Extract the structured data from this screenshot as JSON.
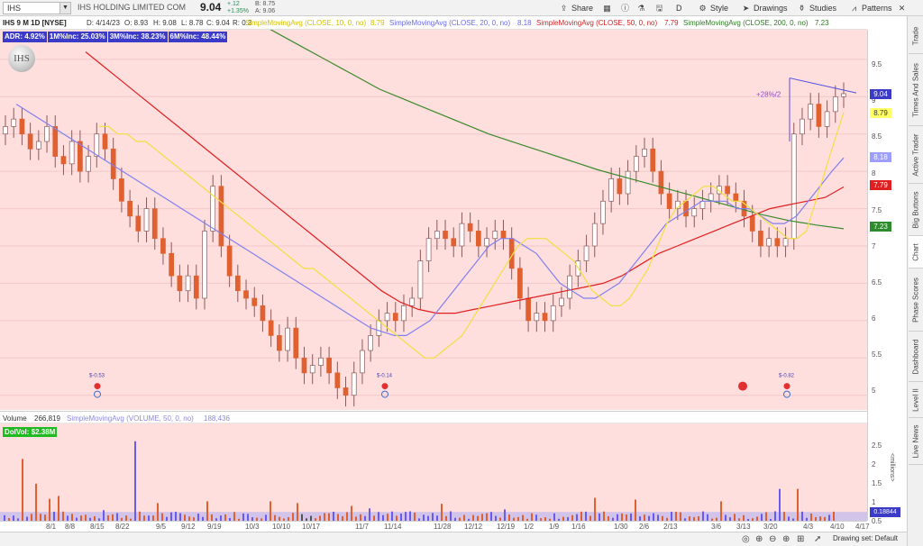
{
  "toolbar": {
    "symbol": "IHS",
    "company": "IHS HOLDING LIMITED COM",
    "last_price": "9.04",
    "change": "+.12",
    "change_pct": "+1.35%",
    "bid": "B: 8.75",
    "ask": "A: 9.06",
    "share": "Share",
    "aggregation": "D",
    "style": "Style",
    "drawings": "Drawings",
    "studies": "Studies",
    "patterns": "Patterns"
  },
  "indicators": {
    "header": "IHS 9 M 1D [NYSE]",
    "date": "D: 4/14/23",
    "open": "O: 8.93",
    "high": "H: 9.08",
    "low": "L: 8.78",
    "close": "C: 9.04",
    "range": "R: 0.3",
    "sma10": "SimpleMovingAvg (CLOSE, 10, 0, no)",
    "sma10_val": "8.79",
    "sma20": "SimpleMovingAvg (CLOSE, 20, 0, no)",
    "sma20_val": "8.18",
    "sma50": "SimpleMovingAvg (CLOSE, 50, 0, no)",
    "sma50_val": "7.79",
    "sma200": "SimpleMovingAvg (CLOSE, 200, 0, no)",
    "sma200_val": "7.23"
  },
  "stats": {
    "adr": "ADR: 4.92%",
    "m1": "1M%Inc: 25.03%",
    "m3": "3M%Inc: 38.23%",
    "m6": "6M%Inc: 48.44%"
  },
  "logo_text": "IHS",
  "annotations": {
    "pattern_label": "+28%/2",
    "earnings": [
      "$-0.53",
      "$-0.14",
      "$-0.82"
    ]
  },
  "price_axis": {
    "ticks": [
      "9.5",
      "9",
      "8.5",
      "8",
      "7.5",
      "7",
      "6.5",
      "6",
      "5.5",
      "5"
    ],
    "tags": [
      {
        "label": "9.04",
        "bg": "#3b3bc8",
        "fg": "#ffffff"
      },
      {
        "label": "8.79",
        "bg": "#ffff66",
        "fg": "#333333"
      },
      {
        "label": "8.18",
        "bg": "#9e9eff",
        "fg": "#ffffff"
      },
      {
        "label": "7.79",
        "bg": "#e02020",
        "fg": "#ffffff"
      },
      {
        "label": "7.23",
        "bg": "#2e8b2e",
        "fg": "#ffffff"
      }
    ]
  },
  "volume": {
    "label": "Volume",
    "value": "266,819",
    "sma": "SimpleMovingAvg (VOLUME, 50, 0, no)",
    "sma_val": "188,436",
    "dolvol": "DolVol: $2.38M",
    "ticks": [
      "2.5",
      "2",
      "1.5",
      "1",
      "0.5"
    ],
    "unit": "<millions>",
    "last_tag": "0.18844"
  },
  "dates": [
    "8/1",
    "8/8",
    "8/15",
    "8/22",
    "9/5",
    "9/12",
    "9/19",
    "10/3",
    "10/10",
    "10/17",
    "11/7",
    "11/14",
    "11/28",
    "12/12",
    "12/19",
    "1/2",
    "1/9",
    "1/16",
    "1/30",
    "2/6",
    "2/13",
    "3/6",
    "3/13",
    "3/20",
    "4/3",
    "4/10",
    "4/17"
  ],
  "side_tabs": [
    "Trade",
    "Times And Sales",
    "Active Trader",
    "Big Buttons",
    "Chart",
    "Phase Scores",
    "Dashboard",
    "Level II",
    "Live News"
  ],
  "bottom": {
    "drawing_set": "Drawing set: Default"
  },
  "colors": {
    "up": "#ffffff",
    "down": "#e06030",
    "sma10": "#f0e040",
    "sma20": "#8080f0",
    "sma50": "#e02020",
    "sma200": "#3a8a2a",
    "volume": "#6a5af0",
    "volume_sma": "#b4b0f0"
  },
  "chart_data": {
    "type": "candlestick",
    "ylim": [
      4.9,
      9.8
    ],
    "closes": [
      8.6,
      8.7,
      8.5,
      8.3,
      8.4,
      8.6,
      8.2,
      8.1,
      8.4,
      8.0,
      8.2,
      8.5,
      8.3,
      7.9,
      7.6,
      7.4,
      7.2,
      7.5,
      7.1,
      6.9,
      6.6,
      6.4,
      6.6,
      6.3,
      7.2,
      7.8,
      7.0,
      6.6,
      6.4,
      6.3,
      6.2,
      6.0,
      5.8,
      5.6,
      5.9,
      5.5,
      5.3,
      5.4,
      5.5,
      5.3,
      5.1,
      5.0,
      5.3,
      5.6,
      5.8,
      6.0,
      6.1,
      6.0,
      6.2,
      6.3,
      6.8,
      7.1,
      7.2,
      7.1,
      7.0,
      7.3,
      7.2,
      7.0,
      7.1,
      7.2,
      7.1,
      6.7,
      6.3,
      6.0,
      6.1,
      6.0,
      6.2,
      6.3,
      6.6,
      6.8,
      7.0,
      7.3,
      7.6,
      7.9,
      7.7,
      8.0,
      8.2,
      8.3,
      8.0,
      7.7,
      7.5,
      7.6,
      7.4,
      7.5,
      7.6,
      7.7,
      7.8,
      7.7,
      7.6,
      7.4,
      7.2,
      7.0,
      7.1,
      7.0,
      7.1,
      8.5,
      8.7,
      8.9,
      8.6,
      8.8,
      9.0,
      9.04
    ],
    "sma10": [
      8.6,
      8.6,
      8.5,
      8.5,
      8.4,
      8.4,
      8.3,
      8.2,
      8.1,
      8.0,
      7.9,
      7.8,
      7.7,
      7.6,
      7.5,
      7.4,
      7.3,
      7.2,
      7.1,
      7.0,
      6.9,
      6.8,
      6.7,
      6.7,
      6.6,
      6.5,
      6.4,
      6.3,
      6.2,
      6.1,
      6.0,
      5.9,
      5.8,
      5.7,
      5.6,
      5.5,
      5.5,
      5.6,
      5.7,
      5.8,
      6.0,
      6.2,
      6.4,
      6.6,
      6.8,
      7.0,
      7.1,
      7.1,
      7.1,
      7.0,
      6.9,
      6.8,
      6.6,
      6.4,
      6.3,
      6.2,
      6.2,
      6.3,
      6.5,
      6.7,
      7.0,
      7.3,
      7.5,
      7.6,
      7.7,
      7.8,
      7.8,
      7.7,
      7.6,
      7.6,
      7.5,
      7.4,
      7.3,
      7.2,
      7.1,
      7.1,
      7.2,
      7.6,
      8.0,
      8.4,
      8.79
    ],
    "sma20": [
      8.9,
      8.8,
      8.7,
      8.6,
      8.5,
      8.4,
      8.3,
      8.2,
      8.1,
      8.0,
      7.9,
      7.8,
      7.7,
      7.6,
      7.5,
      7.4,
      7.3,
      7.2,
      7.1,
      7.0,
      6.9,
      6.8,
      6.7,
      6.6,
      6.5,
      6.4,
      6.3,
      6.2,
      6.1,
      6.0,
      5.9,
      5.85,
      5.8,
      5.8,
      5.9,
      6.0,
      6.2,
      6.4,
      6.6,
      6.8,
      7.0,
      7.1,
      7.1,
      7.0,
      6.9,
      6.7,
      6.5,
      6.4,
      6.3,
      6.3,
      6.4,
      6.5,
      6.7,
      6.9,
      7.1,
      7.3,
      7.4,
      7.5,
      7.6,
      7.6,
      7.6,
      7.5,
      7.5,
      7.4,
      7.3,
      7.3,
      7.4,
      7.6,
      7.8,
      8.0,
      8.18
    ],
    "sma50": [
      9.6,
      9.4,
      9.2,
      9.0,
      8.8,
      8.6,
      8.4,
      8.2,
      8.0,
      7.8,
      7.6,
      7.4,
      7.2,
      7.0,
      6.8,
      6.6,
      6.4,
      6.25,
      6.15,
      6.1,
      6.1,
      6.15,
      6.2,
      6.25,
      6.3,
      6.35,
      6.4,
      6.45,
      6.5,
      6.6,
      6.75,
      6.9,
      7.0,
      7.1,
      7.2,
      7.3,
      7.4,
      7.5,
      7.55,
      7.6,
      7.65,
      7.79
    ],
    "sma200": [
      9.9,
      9.7,
      9.5,
      9.3,
      9.1,
      8.95,
      8.8,
      8.65,
      8.5,
      8.38,
      8.26,
      8.14,
      8.02,
      7.92,
      7.82,
      7.72,
      7.62,
      7.52,
      7.42,
      7.34,
      7.28,
      7.23
    ]
  }
}
